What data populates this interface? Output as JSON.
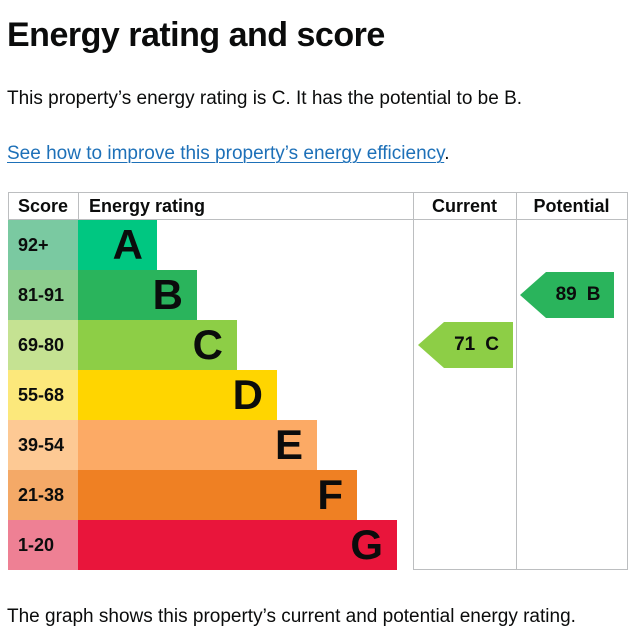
{
  "page": {
    "title": "Energy rating and score",
    "summary": "This property’s energy rating is C. It has the potential to be B.",
    "link_text": "See how to improve this property’s energy efficiency",
    "link_suffix": ".",
    "caption": "The graph shows this property’s current and potential energy rating."
  },
  "chart_data": {
    "type": "bar",
    "title": "Energy rating and score",
    "columns": [
      "Score",
      "Energy rating",
      "Current",
      "Potential"
    ],
    "bands": [
      {
        "band": "A",
        "score_range": "92+",
        "color": "#00c781",
        "score_tint": "#7ac9a1"
      },
      {
        "band": "B",
        "score_range": "81-91",
        "color": "#2ab45c",
        "score_tint": "#8ccd8e"
      },
      {
        "band": "C",
        "score_range": "69-80",
        "color": "#8dce46",
        "score_tint": "#c5e292"
      },
      {
        "band": "D",
        "score_range": "55-68",
        "color": "#ffd500",
        "score_tint": "#fce87b"
      },
      {
        "band": "E",
        "score_range": "39-54",
        "color": "#fcaa65",
        "score_tint": "#fdc994"
      },
      {
        "band": "F",
        "score_range": "21-38",
        "color": "#ef8023",
        "score_tint": "#f4a967"
      },
      {
        "band": "G",
        "score_range": "1-20",
        "color": "#e9153b",
        "score_tint": "#ee8094"
      }
    ],
    "current": {
      "label": "Current",
      "score": "71",
      "band": "C"
    },
    "potential": {
      "label": "Potential",
      "score": "89",
      "band": "B"
    },
    "text_color": "#0b0c0c",
    "link_color": "#1d70b8",
    "grid_color": "#bcbec0"
  }
}
